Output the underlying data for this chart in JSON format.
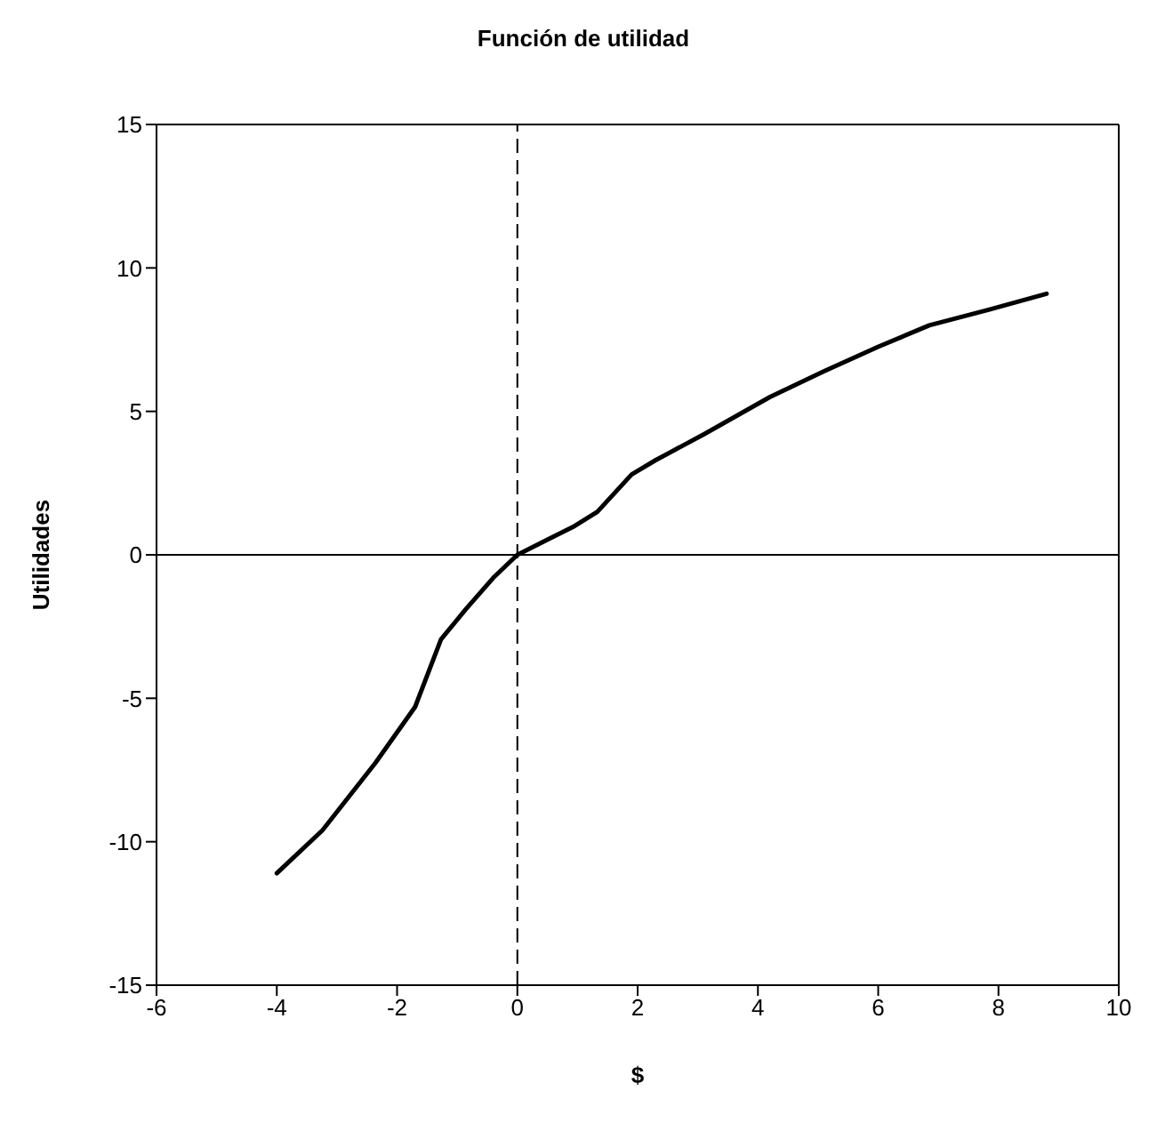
{
  "chart_data": {
    "type": "line",
    "title": "Función de utilidad",
    "xlabel": "$",
    "ylabel": "Utilidades",
    "xlim": [
      -6,
      10
    ],
    "xticks": [
      -6,
      -4,
      -2,
      0,
      2,
      4,
      6,
      8,
      10
    ],
    "ylim": [
      -15,
      15
    ],
    "yticks": [
      -15,
      -10,
      -5,
      0,
      5,
      10,
      15
    ],
    "grid": false,
    "legend": false,
    "marker": "none",
    "line_style": "solid",
    "ref_lines": [
      {
        "axis": "x",
        "value": 0,
        "color": "#000000",
        "line_style": "dashed"
      },
      {
        "axis": "y",
        "value": 0,
        "color": "#000000"
      }
    ],
    "series": [
      {
        "color": "#000000",
        "x": [
          -4,
          -3.24,
          -2.36,
          -1.7,
          -1.27,
          -0.86,
          -0.4,
          0,
          0.52,
          0.95,
          1.33,
          1.9,
          2.3,
          3.1,
          4.2,
          5.1,
          6.0,
          6.85,
          7.85,
          8.8
        ],
        "values": [
          -11.1,
          -9.6,
          -7.25,
          -5.3,
          -2.95,
          -1.9,
          -0.8,
          0,
          0.55,
          1.0,
          1.5,
          2.8,
          3.3,
          4.2,
          5.5,
          6.4,
          7.25,
          8.0,
          8.55,
          9.1
        ]
      }
    ]
  }
}
